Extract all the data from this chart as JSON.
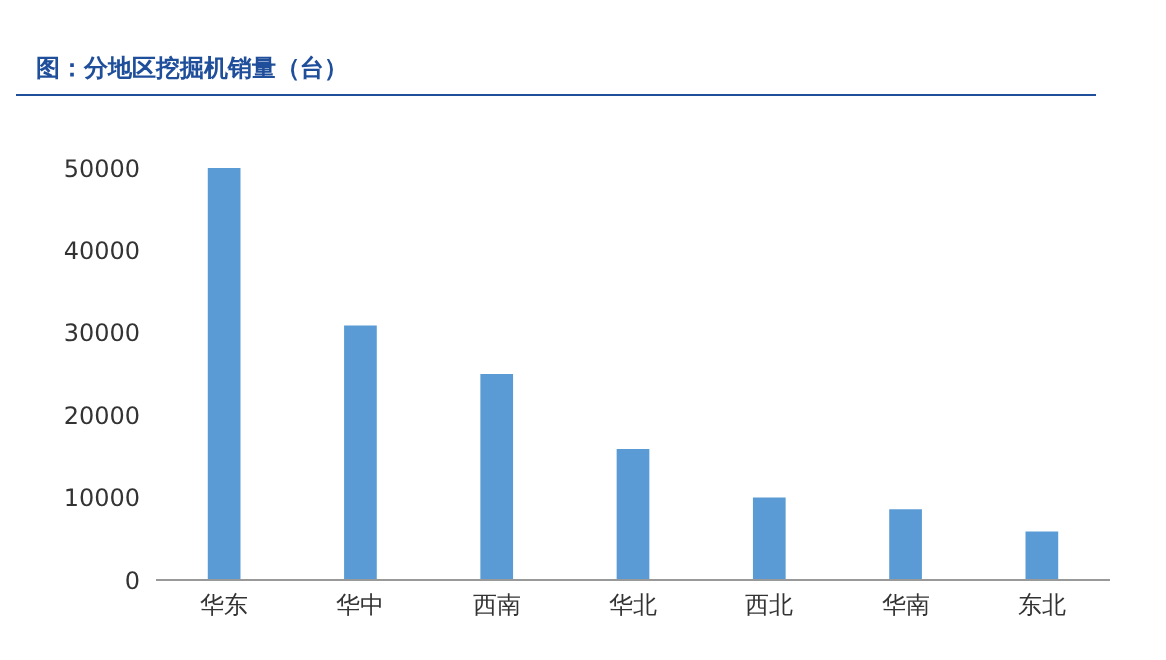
{
  "chart_data": {
    "type": "bar",
    "title": "图：分地区挖掘机销量（台）",
    "categories": [
      "华东",
      "华中",
      "西南",
      "华北",
      "西北",
      "华南",
      "东北"
    ],
    "values": [
      50000,
      30900,
      25000,
      15900,
      10000,
      8600,
      5900
    ],
    "color": "#5b9bd5",
    "ylim": [
      0,
      50000
    ],
    "yticks": [
      0,
      10000,
      20000,
      30000,
      40000,
      50000
    ],
    "grid": false
  }
}
